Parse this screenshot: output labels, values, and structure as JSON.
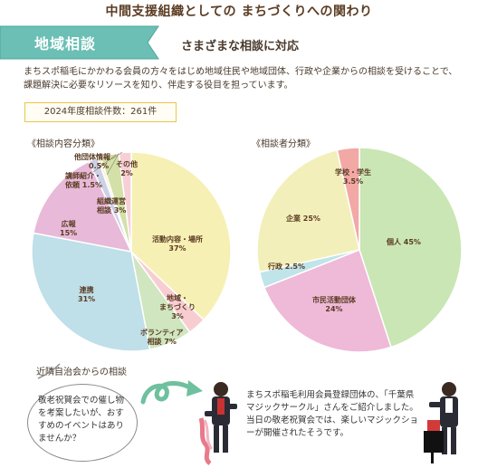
{
  "header": {
    "title": "中間支援組織としての まちづくりへの関わり",
    "section_tag": "地域相談",
    "subtitle": "さまざまな相談に対応"
  },
  "intro": {
    "text": "まちスポ稲毛にかかわる会員の方々をはじめ地域住民や地域団体、行政や企業からの相談を受けることで、課題解決に必要なリソースを知り、伴走する役目を担っています。"
  },
  "count_box": {
    "label": "2024年度相談件数：261件"
  },
  "chart_data": [
    {
      "type": "pie",
      "title": "《相談内容分類》",
      "slices": [
        {
          "label": "活動内容・場所",
          "value": 37,
          "display": "37%",
          "color": "#f7f0b4"
        },
        {
          "label": "地域・まちづくり",
          "value": 3,
          "display": "3%",
          "color": "#f8cdd1"
        },
        {
          "label": "ボランティア相談",
          "value": 7,
          "display": "7%",
          "color": "#cfe6c0"
        },
        {
          "label": "連携",
          "value": 31,
          "display": "31%",
          "color": "#bfdfe9"
        },
        {
          "label": "広報",
          "value": 15,
          "display": "15%",
          "color": "#e8b9d8"
        },
        {
          "label": "講師紹介・依頼",
          "value": 1.5,
          "display": "1.5%",
          "color": "#ccd1e9"
        },
        {
          "label": "他団体情報",
          "value": 0.5,
          "display": "0.5%",
          "color": "#f6f1c2"
        },
        {
          "label": "組織運営相談",
          "value": 3,
          "display": "3%",
          "color": "#d3e1a8"
        },
        {
          "label": "その他",
          "value": 2,
          "display": "2%",
          "color": "#f7cfd6"
        }
      ]
    },
    {
      "type": "pie",
      "title": "《相談者分類》",
      "slices": [
        {
          "label": "個人",
          "value": 45,
          "display": "45%",
          "color": "#c9e6b4"
        },
        {
          "label": "市民活動団体",
          "value": 24,
          "display": "24%",
          "color": "#efb9d8"
        },
        {
          "label": "行政",
          "value": 2.5,
          "display": "2.5%",
          "color": "#bfe4ea"
        },
        {
          "label": "企業",
          "value": 25,
          "display": "25%",
          "color": "#f3efba"
        },
        {
          "label": "学校・学生",
          "value": 3.5,
          "display": "3.5%",
          "color": "#f2a8a5"
        }
      ]
    }
  ],
  "consultation": {
    "label": "近隣自治会からの相談",
    "question": "敬老祝賀会での催し物を考案したいが、おすすめのイベントはありませんか？",
    "answer": "まちスポ稲毛利用会員登録団体の、「千葉県マジックサークル」さんをご紹介しました。当日の敬老祝賀会では、楽しいマジックショーが開催されたそうです。"
  },
  "colors": {
    "banner": "#6bbfb5",
    "arrow": "#6fc09e",
    "accent": "#e9c64a"
  }
}
